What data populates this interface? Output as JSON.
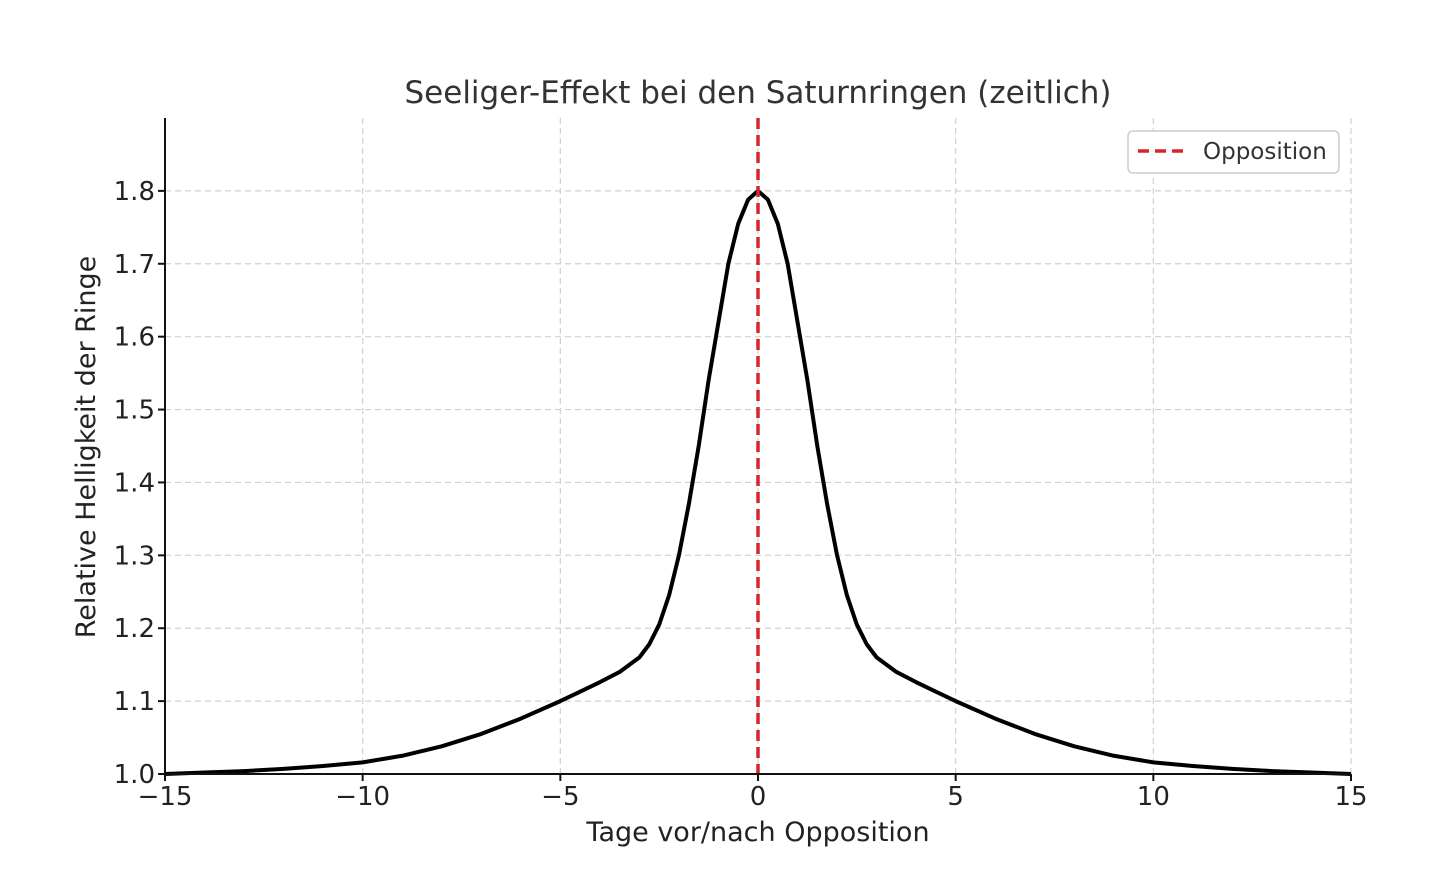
{
  "chart_data": {
    "type": "line",
    "title": "Seeliger-Effekt bei den Saturnringen (zeitlich)",
    "xlabel": "Tage vor/nach Opposition",
    "ylabel": "Relative Helligkeit der Ringe",
    "xlim": [
      -15,
      15
    ],
    "ylim": [
      1.0,
      1.9
    ],
    "x_ticks": [
      -15,
      -10,
      -5,
      0,
      5,
      10,
      15
    ],
    "x_tick_labels": [
      "−15",
      "−10",
      "−5",
      "0",
      "5",
      "10",
      "15"
    ],
    "y_ticks": [
      1.0,
      1.1,
      1.2,
      1.3,
      1.4,
      1.5,
      1.6,
      1.7,
      1.8
    ],
    "y_tick_labels": [
      "1.0",
      "1.1",
      "1.2",
      "1.3",
      "1.4",
      "1.5",
      "1.6",
      "1.7",
      "1.8"
    ],
    "grid": true,
    "legend_position": "top-right",
    "series": [
      {
        "color": "#000000",
        "x": [
          -15,
          -14,
          -13,
          -12,
          -11,
          -10,
          -9,
          -8,
          -7,
          -6,
          -5,
          -4.5,
          -4,
          -3.5,
          -3,
          -2.75,
          -2.5,
          -2.25,
          -2,
          -1.75,
          -1.5,
          -1.25,
          -1,
          -0.75,
          -0.5,
          -0.25,
          0,
          0.25,
          0.5,
          0.75,
          1,
          1.25,
          1.5,
          1.75,
          2,
          2.25,
          2.5,
          2.75,
          3,
          3.5,
          4,
          4.5,
          5,
          6,
          7,
          8,
          9,
          10,
          11,
          12,
          13,
          14,
          15
        ],
        "y": [
          1.0,
          1.002,
          1.004,
          1.007,
          1.011,
          1.016,
          1.025,
          1.038,
          1.055,
          1.076,
          1.1,
          1.113,
          1.126,
          1.14,
          1.16,
          1.178,
          1.205,
          1.245,
          1.3,
          1.37,
          1.45,
          1.54,
          1.62,
          1.7,
          1.755,
          1.788,
          1.8,
          1.788,
          1.755,
          1.7,
          1.62,
          1.54,
          1.45,
          1.37,
          1.3,
          1.245,
          1.205,
          1.178,
          1.16,
          1.14,
          1.126,
          1.113,
          1.1,
          1.076,
          1.055,
          1.038,
          1.025,
          1.016,
          1.011,
          1.007,
          1.004,
          1.002,
          1.0
        ]
      },
      {
        "name": "Opposition",
        "color": "#d62728",
        "style": "dashed",
        "x_value": 0
      }
    ]
  }
}
